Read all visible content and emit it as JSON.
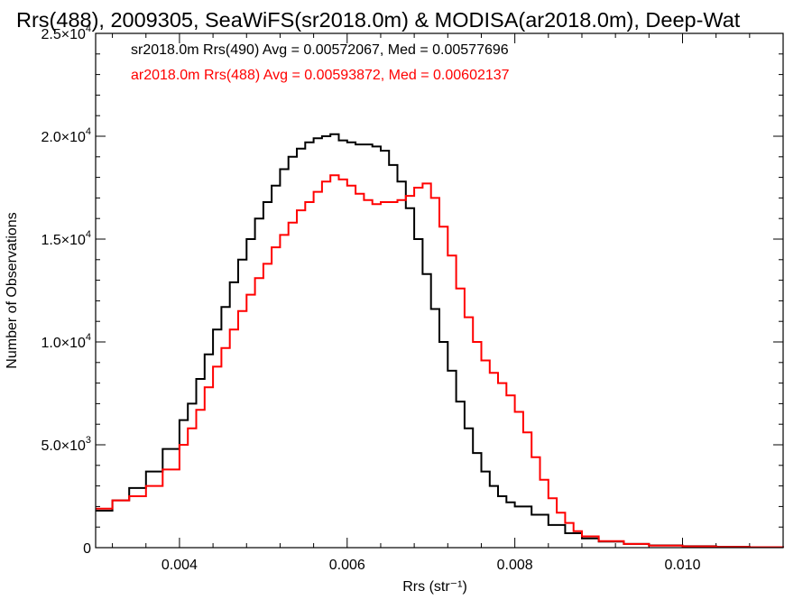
{
  "chart_data": {
    "type": "line",
    "title": "Rrs(488), 2009305, SeaWiFS(sr2018.0m) & MODISA(ar2018.0m), Deep-Wat",
    "xlabel": "Rrs (str⁻¹)",
    "ylabel": "Number of Observations",
    "xlim": [
      0.003,
      0.0112
    ],
    "ylim": [
      0,
      25000
    ],
    "x_ticks": [
      {
        "value": 0.004,
        "label": "0.004"
      },
      {
        "value": 0.006,
        "label": "0.006"
      },
      {
        "value": 0.008,
        "label": "0.008"
      },
      {
        "value": 0.01,
        "label": "0.010"
      }
    ],
    "y_ticks": [
      {
        "value": 0,
        "mantissa": "0",
        "exponent": ""
      },
      {
        "value": 5000,
        "mantissa": "5.0×10",
        "exponent": "3"
      },
      {
        "value": 10000,
        "mantissa": "1.0×10",
        "exponent": "4"
      },
      {
        "value": 15000,
        "mantissa": "1.5×10",
        "exponent": "4"
      },
      {
        "value": 20000,
        "mantissa": "2.0×10",
        "exponent": "4"
      },
      {
        "value": 25000,
        "mantissa": "2.5×10",
        "exponent": "4"
      }
    ],
    "legend_placement": "top-left",
    "grid": false,
    "series": [
      {
        "name": "sr2018.0m Rrs(490) Avg = 0.00572067, Med = 0.00577696",
        "color": "#000000",
        "x": [
          0.003,
          0.0032,
          0.0034,
          0.0036,
          0.0038,
          0.004,
          0.0041,
          0.0042,
          0.0043,
          0.0044,
          0.0045,
          0.0046,
          0.0047,
          0.0048,
          0.0049,
          0.005,
          0.0051,
          0.0052,
          0.0053,
          0.0054,
          0.0055,
          0.0056,
          0.0057,
          0.0058,
          0.0059,
          0.006,
          0.0061,
          0.0062,
          0.0063,
          0.0064,
          0.0065,
          0.0066,
          0.0067,
          0.0068,
          0.0069,
          0.007,
          0.0071,
          0.0072,
          0.0073,
          0.0074,
          0.0075,
          0.0076,
          0.0077,
          0.0078,
          0.0079,
          0.008,
          0.0082,
          0.0084,
          0.0086,
          0.0088,
          0.009,
          0.0093,
          0.0096,
          0.01,
          0.0104,
          0.0108,
          0.0112
        ],
        "y": [
          1800,
          2300,
          2900,
          3700,
          4800,
          6200,
          7000,
          8200,
          9400,
          10600,
          11700,
          12900,
          14000,
          15000,
          16000,
          16800,
          17600,
          18400,
          19000,
          19400,
          19700,
          19900,
          20000,
          20100,
          19800,
          19700,
          19600,
          19600,
          19500,
          19300,
          18600,
          17800,
          16500,
          15000,
          13300,
          11600,
          10000,
          8600,
          7100,
          5800,
          4600,
          3700,
          3000,
          2500,
          2200,
          2000,
          1600,
          1100,
          700,
          450,
          300,
          180,
          110,
          70,
          40,
          20,
          15
        ]
      },
      {
        "name": "ar2018.0m Rrs(488) Avg = 0.00593872, Med = 0.00602137",
        "color": "#ff0000",
        "x": [
          0.003,
          0.0032,
          0.0034,
          0.0036,
          0.0038,
          0.004,
          0.0041,
          0.0042,
          0.0043,
          0.0044,
          0.0045,
          0.0046,
          0.0047,
          0.0048,
          0.0049,
          0.005,
          0.0051,
          0.0052,
          0.0053,
          0.0054,
          0.0055,
          0.0056,
          0.0057,
          0.0058,
          0.0059,
          0.006,
          0.0061,
          0.0062,
          0.0063,
          0.0064,
          0.0065,
          0.0066,
          0.0067,
          0.0068,
          0.0069,
          0.007,
          0.0071,
          0.0072,
          0.0073,
          0.0074,
          0.0075,
          0.0076,
          0.0077,
          0.0078,
          0.0079,
          0.008,
          0.0081,
          0.0082,
          0.0083,
          0.0084,
          0.0085,
          0.0086,
          0.0087,
          0.0088,
          0.009,
          0.0093,
          0.0096,
          0.01,
          0.0104,
          0.0108,
          0.0112
        ],
        "y": [
          1900,
          2300,
          2500,
          3000,
          3800,
          5000,
          5800,
          6700,
          7800,
          8800,
          9700,
          10600,
          11500,
          12300,
          13100,
          13800,
          14600,
          15200,
          15800,
          16400,
          16800,
          17300,
          17800,
          18100,
          17900,
          17600,
          17200,
          16900,
          16700,
          16800,
          16800,
          16900,
          17100,
          17500,
          17700,
          17000,
          15600,
          14200,
          12600,
          11200,
          10000,
          9100,
          8500,
          8000,
          7400,
          6600,
          5600,
          4400,
          3300,
          2400,
          1700,
          1200,
          800,
          550,
          320,
          180,
          100,
          60,
          30,
          20,
          15
        ]
      }
    ]
  }
}
